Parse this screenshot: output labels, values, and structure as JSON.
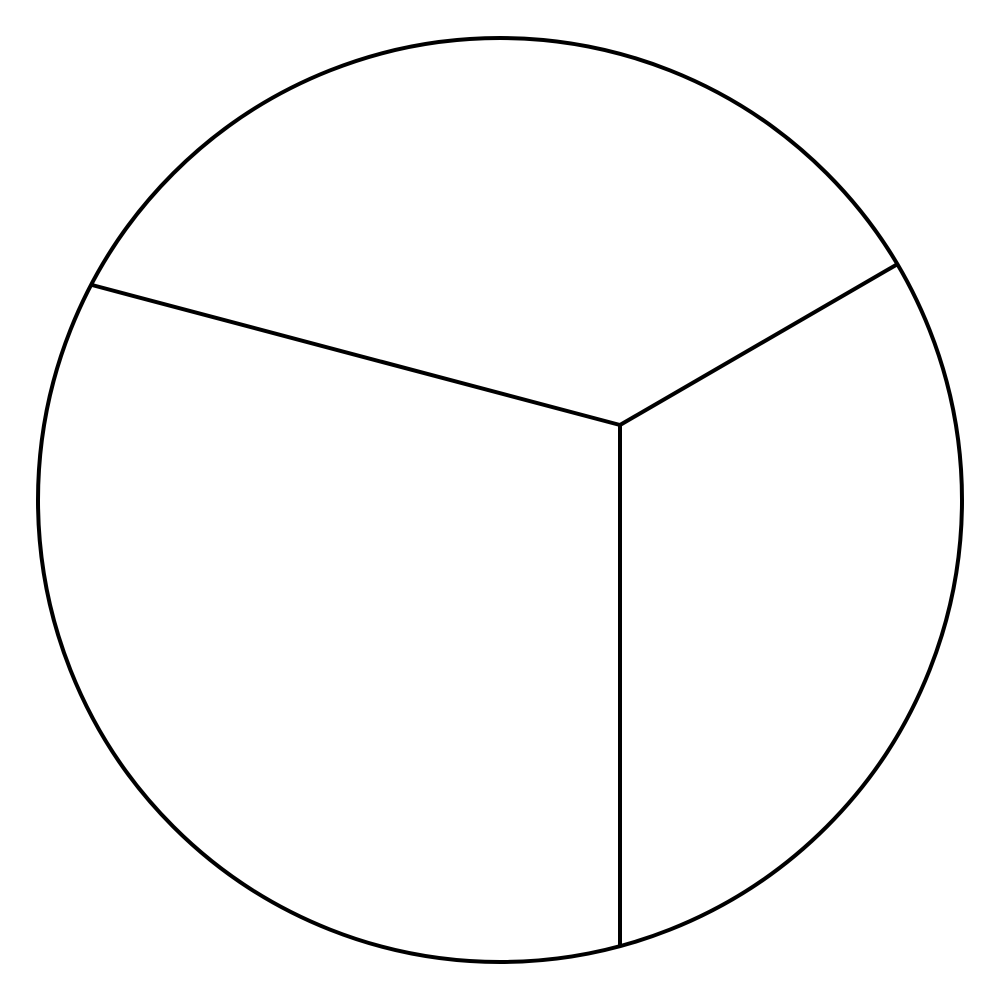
{
  "diagram": {
    "type": "circle-partition",
    "region_count": 3,
    "stroke_color": "#000000",
    "fill_color": "#ffffff",
    "regions": [
      {
        "name": "upper-region"
      },
      {
        "name": "left-lower-region"
      },
      {
        "name": "right-lower-region"
      }
    ],
    "labels": []
  }
}
